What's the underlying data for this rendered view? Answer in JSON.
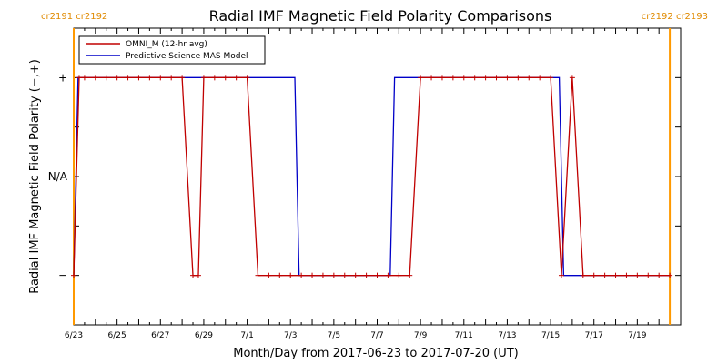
{
  "chart_data": {
    "type": "line",
    "title": "Radial IMF Magnetic Field Polarity Comparisons",
    "xlabel": "Month/Day from 2017-06-23 to 2017-07-20 (UT)",
    "ylabel": "Radial IMF Magnetic Field Polarity (−,+)",
    "xlim": [
      0,
      28
    ],
    "ylim": [
      -1.5,
      1.5
    ],
    "x_tick_labels": [
      {
        "x": 0,
        "label": "6/23"
      },
      {
        "x": 2,
        "label": "6/25"
      },
      {
        "x": 4,
        "label": "6/27"
      },
      {
        "x": 6,
        "label": "6/29"
      },
      {
        "x": 8,
        "label": "7/1"
      },
      {
        "x": 10,
        "label": "7/3"
      },
      {
        "x": 12,
        "label": "7/5"
      },
      {
        "x": 14,
        "label": "7/7"
      },
      {
        "x": 16,
        "label": "7/9"
      },
      {
        "x": 18,
        "label": "7/11"
      },
      {
        "x": 20,
        "label": "7/13"
      },
      {
        "x": 22,
        "label": "7/15"
      },
      {
        "x": 24,
        "label": "7/17"
      },
      {
        "x": 26,
        "label": "7/19"
      }
    ],
    "y_tick_labels": [
      {
        "y": 1,
        "label": "+"
      },
      {
        "y": 0,
        "label": "N/A"
      },
      {
        "y": -1,
        "label": "−"
      }
    ],
    "carrington_markers": [
      {
        "x": 0,
        "label": "cr2191 cr2192",
        "anchor": "left"
      },
      {
        "x": 27.5,
        "label": "cr2192 cr2193",
        "anchor": "right"
      }
    ],
    "series": [
      {
        "name": "OMNI_M (12-hr avg)",
        "color": "#c00000",
        "markers": true,
        "points": [
          [
            0.0,
            -1
          ],
          [
            0.25,
            1
          ],
          [
            0.5,
            1
          ],
          [
            1.0,
            1
          ],
          [
            1.5,
            1
          ],
          [
            2.0,
            1
          ],
          [
            2.5,
            1
          ],
          [
            3.0,
            1
          ],
          [
            3.5,
            1
          ],
          [
            4.0,
            1
          ],
          [
            4.5,
            1
          ],
          [
            5.0,
            1
          ],
          [
            5.5,
            -1
          ],
          [
            5.75,
            -1
          ],
          [
            6.0,
            1
          ],
          [
            6.5,
            1
          ],
          [
            7.0,
            1
          ],
          [
            7.5,
            1
          ],
          [
            8.0,
            1
          ],
          [
            8.5,
            -1
          ],
          [
            9.0,
            -1
          ],
          [
            9.5,
            -1
          ],
          [
            10.0,
            -1
          ],
          [
            10.5,
            -1
          ],
          [
            11.0,
            -1
          ],
          [
            11.5,
            -1
          ],
          [
            12.0,
            -1
          ],
          [
            12.5,
            -1
          ],
          [
            13.0,
            -1
          ],
          [
            13.5,
            -1
          ],
          [
            14.0,
            -1
          ],
          [
            14.5,
            -1
          ],
          [
            15.0,
            -1
          ],
          [
            15.5,
            -1
          ],
          [
            16.0,
            1
          ],
          [
            16.5,
            1
          ],
          [
            17.0,
            1
          ],
          [
            17.5,
            1
          ],
          [
            18.0,
            1
          ],
          [
            18.5,
            1
          ],
          [
            19.0,
            1
          ],
          [
            19.5,
            1
          ],
          [
            20.0,
            1
          ],
          [
            20.5,
            1
          ],
          [
            21.0,
            1
          ],
          [
            21.5,
            1
          ],
          [
            22.0,
            1
          ],
          [
            22.5,
            -1
          ],
          [
            23.0,
            1
          ],
          [
            23.5,
            -1
          ],
          [
            24.0,
            -1
          ],
          [
            24.5,
            -1
          ],
          [
            25.0,
            -1
          ],
          [
            25.5,
            -1
          ],
          [
            26.0,
            -1
          ],
          [
            26.5,
            -1
          ],
          [
            27.0,
            -1
          ],
          [
            27.5,
            -1
          ]
        ]
      },
      {
        "name": "Predictive Science MAS Model",
        "color": "#0000c8",
        "markers": false,
        "points": [
          [
            0.0,
            -1
          ],
          [
            0.2,
            1
          ],
          [
            10.2,
            1
          ],
          [
            10.4,
            -1
          ],
          [
            14.6,
            -1
          ],
          [
            14.8,
            1
          ],
          [
            22.4,
            1
          ],
          [
            22.6,
            -1
          ],
          [
            27.5,
            -1
          ]
        ]
      }
    ],
    "legend_placement": "top-left",
    "grid": false
  }
}
